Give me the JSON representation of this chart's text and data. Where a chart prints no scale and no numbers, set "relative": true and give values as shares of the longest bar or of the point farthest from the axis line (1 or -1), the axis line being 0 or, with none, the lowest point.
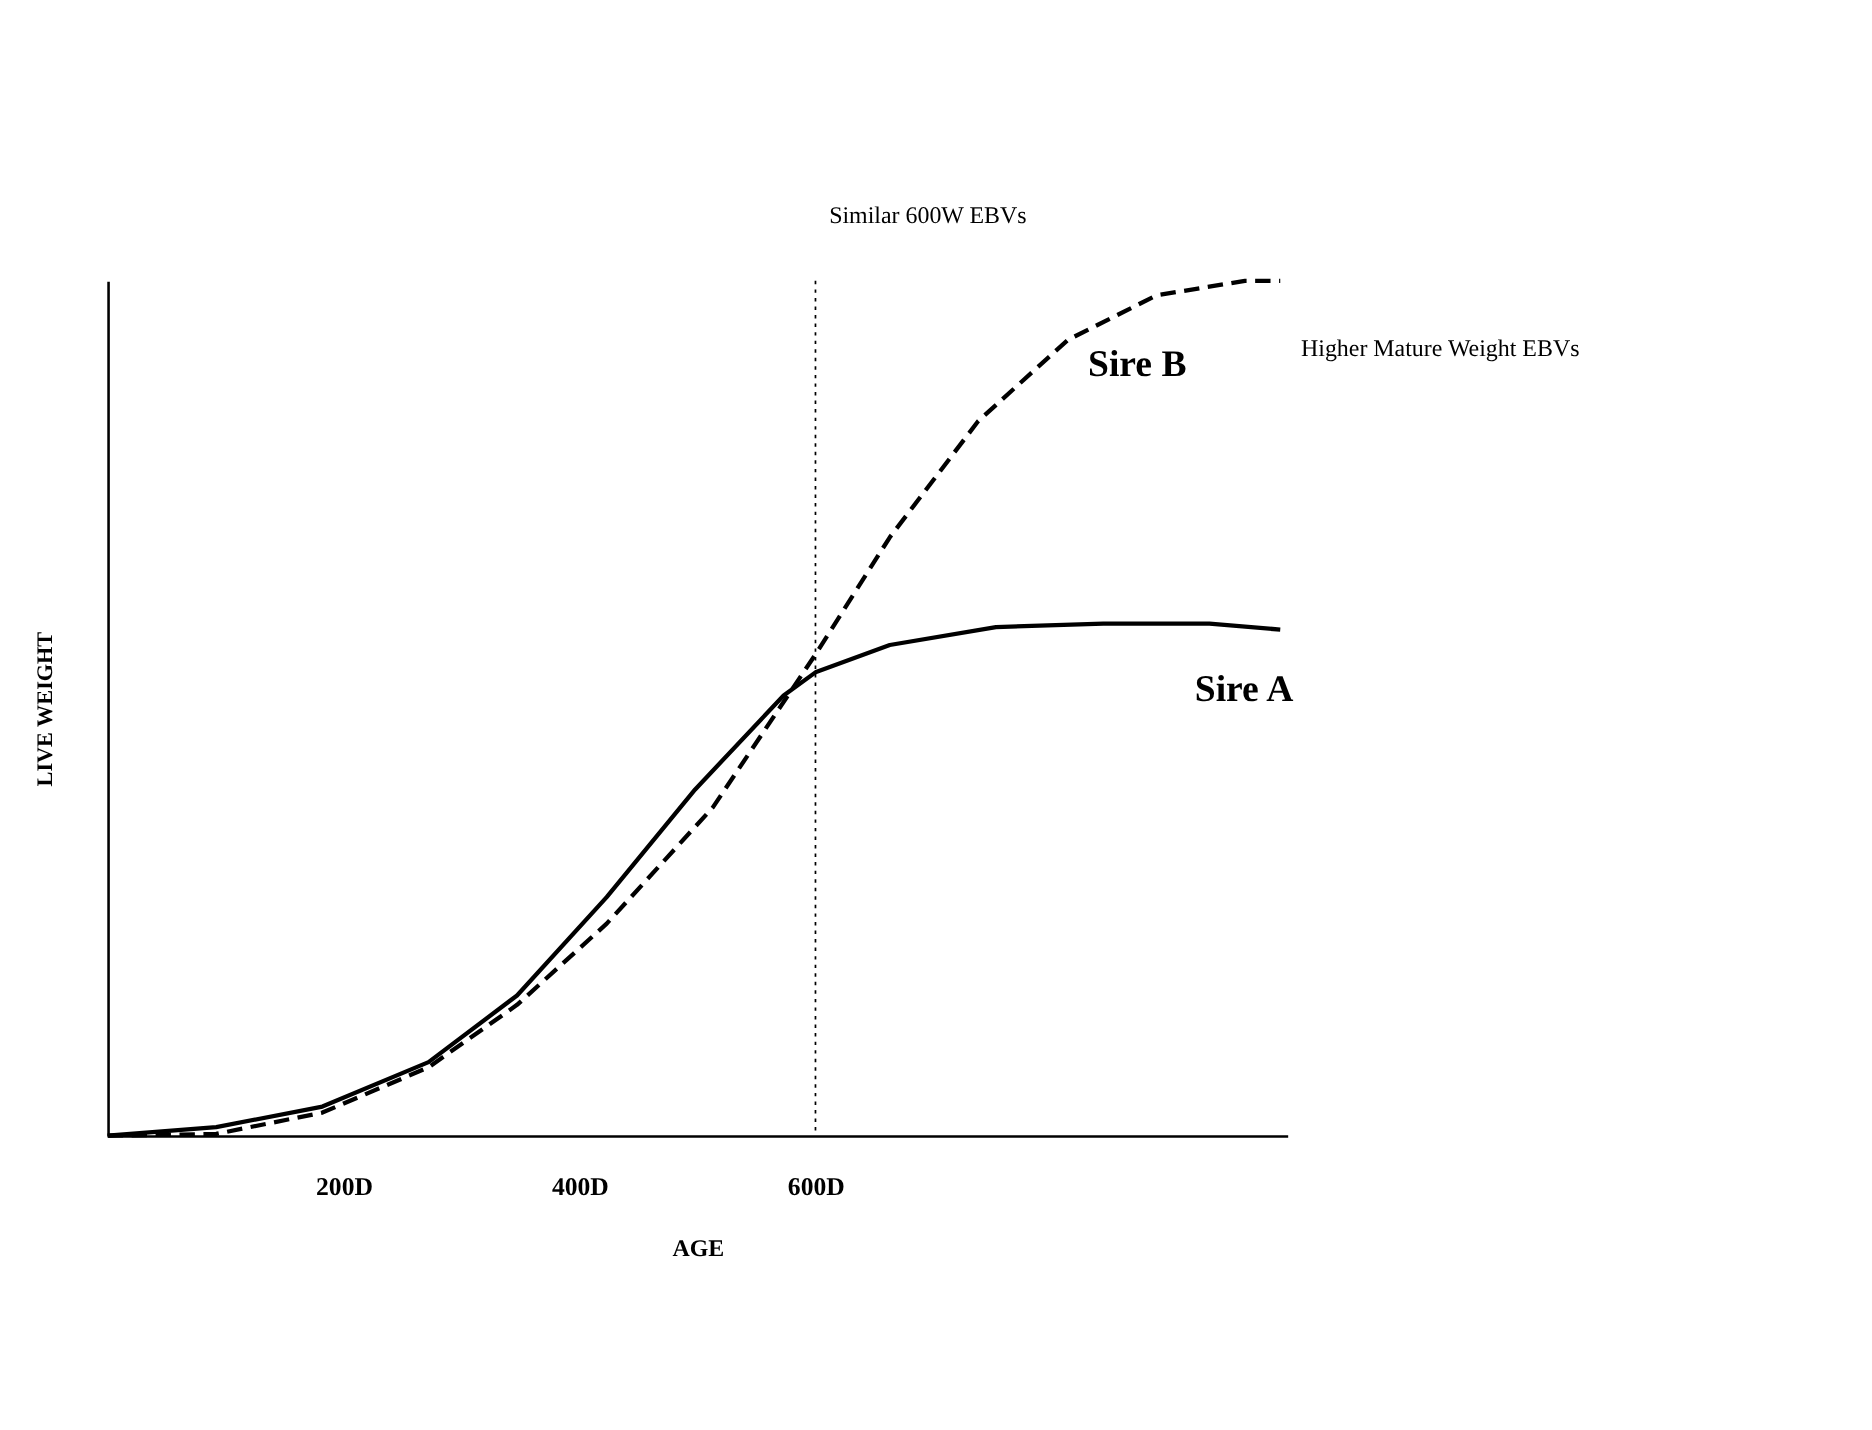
{
  "chart_data": {
    "type": "line",
    "relative": true,
    "xlabel": "AGE",
    "ylabel": "LIVE WEIGHT",
    "xlim": [
      0,
      1000
    ],
    "xticks": [
      {
        "value": 200,
        "label": "200D"
      },
      {
        "value": 400,
        "label": "400D"
      },
      {
        "value": 600,
        "label": "600D"
      }
    ],
    "tick_labels": "x",
    "grid": false,
    "legend": false,
    "marker": "none",
    "series": [
      {
        "name": "Sire A",
        "color": "#000000",
        "line_style": "solid",
        "x": [
          0,
          92,
          182,
          272,
          347,
          423,
          498,
          573,
          600,
          663,
          753,
          844,
          934,
          994
        ],
        "values": [
          0,
          0.01,
          0.034,
          0.086,
          0.164,
          0.279,
          0.405,
          0.515,
          0.542,
          0.574,
          0.595,
          0.599,
          0.599,
          0.592
        ]
      },
      {
        "name": "Sire B",
        "color": "#000000",
        "line_style": "dashed",
        "x": [
          0,
          92,
          182,
          272,
          347,
          423,
          513,
          600,
          663,
          738,
          814,
          889,
          964,
          994
        ],
        "values": [
          0,
          0.002,
          0.027,
          0.08,
          0.153,
          0.248,
          0.384,
          0.563,
          0.7,
          0.836,
          0.931,
          0.983,
          1.0,
          1.0
        ]
      }
    ],
    "ref_lines": [
      {
        "axis": "x",
        "value": 600,
        "label": "Similar 600W EBVs",
        "color": "#000000",
        "line_style": "dotted"
      }
    ],
    "annotations": [
      "Higher Mature Weight EBVs"
    ]
  }
}
